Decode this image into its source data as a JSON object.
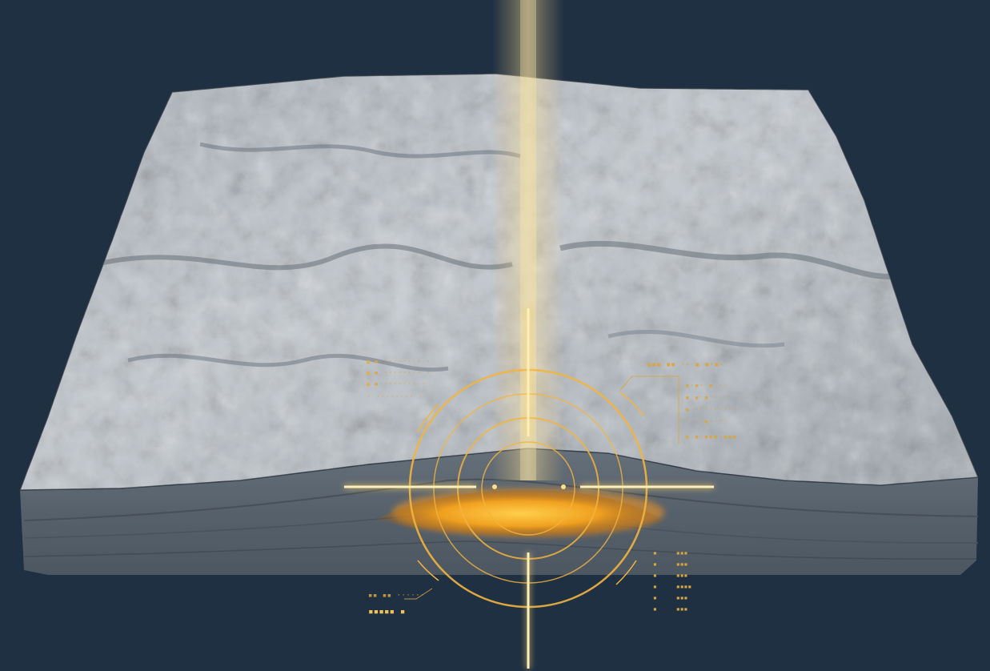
{
  "scene": {
    "subject": "3d-terrain-block-with-subsurface-target",
    "colors": {
      "background": "#1f3043",
      "terrain_light": "#b9c0c8",
      "terrain_dark": "#6f7780",
      "strata": "#5d6670",
      "accent": "#f2b440",
      "glow": "#ff9a1a"
    },
    "icons": [
      "crosshair-reticle-icon",
      "light-beam-icon",
      "deposit-glow-icon"
    ]
  },
  "hud": {
    "left_panel": {
      "lines": [
        "▪ ········ ·",
        "▪ ········ ·",
        "▪ ······· ·",
        "· ········ ·"
      ]
    },
    "right_panel": {
      "title": "▪▪▪ ▪▪ ·· ▪ ▪·▪·",
      "lines": [
        "▪·▪· ▪ ··",
        "▪ ▪·▪··· ·",
        "▪ ·········",
        "· ··▪····",
        "▪ ▪·▪▪▪·▪▪▪"
      ]
    },
    "bottom_left": {
      "caption": "▪▪ ▪▪ ······",
      "title": "▪▪▪▪▪ ▪"
    },
    "bottom_right_rows": [
      {
        "k": "▪",
        "v": "▪▪▪"
      },
      {
        "k": "▪",
        "v": "▪▪▪"
      },
      {
        "k": "▪",
        "v": "▪▪▪"
      },
      {
        "k": "▪",
        "v": "▪▪▪▪"
      },
      {
        "k": "▪",
        "v": "▪▪▪"
      },
      {
        "k": "▪",
        "v": "▪▪▪"
      }
    ]
  }
}
